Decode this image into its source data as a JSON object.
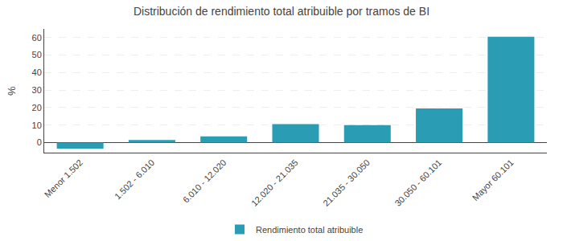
{
  "chart_data": {
    "type": "bar",
    "title": "Distribución de rendimiento total atribuible por tramos de BI",
    "categories": [
      "Menor 1.502",
      "1.502 - 6.010",
      "6.010 - 12.020",
      "12.020 - 21.035",
      "21.035 - 30.050",
      "30.050 - 60.101",
      "Mayor 60.101"
    ],
    "series": [
      {
        "name": "Rendimiento total atribuible",
        "color": "#2a9db5",
        "values": [
          -3.5,
          1.5,
          3.5,
          10.5,
          10.0,
          19.5,
          60.5
        ]
      }
    ],
    "ylabel": "%",
    "ylim": [
      -6,
      65
    ],
    "yticks": [
      0,
      10,
      20,
      30,
      40,
      50,
      60
    ],
    "grid": true,
    "legend": "bottom"
  }
}
